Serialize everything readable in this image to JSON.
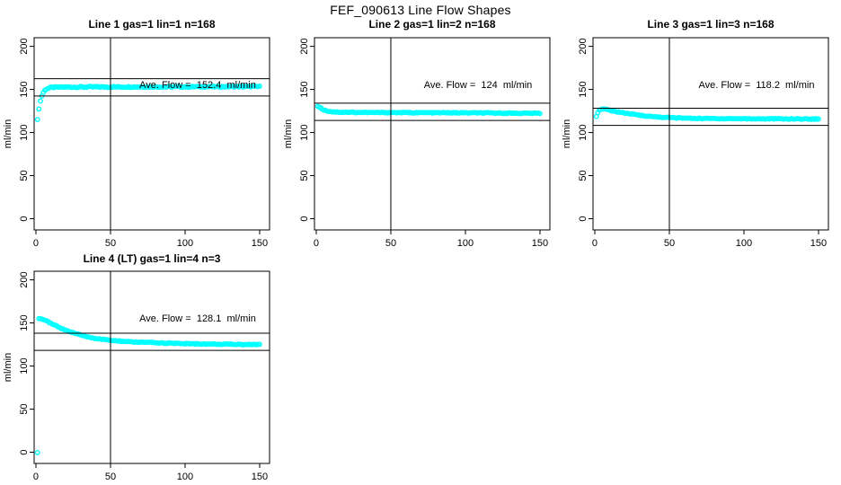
{
  "main_title": "FEF_090613  Line Flow Shapes",
  "colors": {
    "points": "#00FFFF",
    "axis": "#000000",
    "background": "#FFFFFF",
    "text": "#000000"
  },
  "chart_data": [
    {
      "type": "scatter",
      "title": "Line 1 gas=1 lin=1 n=168",
      "ylabel": "ml/min",
      "annotation": "Ave. Flow =  152.4  ml/min",
      "ave_flow": 152.4,
      "n": 168,
      "x_ticks": [
        0,
        50,
        100,
        150
      ],
      "y_ticks": [
        0,
        50,
        100,
        150,
        200
      ],
      "xlim": [
        0,
        155
      ],
      "ylim": [
        0,
        210
      ],
      "vline_x": 50,
      "hlines": [
        162.4,
        142.4
      ],
      "marker": "open-circle",
      "color": "#00FFFF",
      "noise": 0.7,
      "x_step": 1,
      "points": [
        [
          1,
          114.5
        ],
        [
          2,
          128
        ],
        [
          3,
          136.5
        ],
        [
          4,
          142.5
        ],
        [
          5,
          146.5
        ],
        [
          6,
          149
        ],
        [
          7,
          150.5
        ],
        [
          8,
          151.3
        ],
        [
          9,
          151.8
        ],
        [
          10,
          152.1
        ],
        [
          12,
          152.4
        ],
        [
          15,
          152.6
        ],
        [
          20,
          152.7
        ],
        [
          30,
          152.8
        ],
        [
          40,
          152.9
        ],
        [
          50,
          152.9
        ],
        [
          70,
          153
        ],
        [
          90,
          153
        ],
        [
          110,
          153.1
        ],
        [
          130,
          153.2
        ],
        [
          150,
          153.3
        ]
      ]
    },
    {
      "type": "scatter",
      "title": "Line 2 gas=1 lin=2 n=168",
      "ylabel": "ml/min",
      "annotation": "Ave. Flow =  124  ml/min",
      "ave_flow": 124,
      "n": 168,
      "x_ticks": [
        0,
        50,
        100,
        150
      ],
      "y_ticks": [
        0,
        50,
        100,
        150,
        200
      ],
      "xlim": [
        0,
        155
      ],
      "ylim": [
        0,
        210
      ],
      "vline_x": 50,
      "hlines": [
        134,
        114
      ],
      "marker": "open-circle",
      "color": "#00FFFF",
      "noise": 0.5,
      "x_step": 1,
      "points": [
        [
          1,
          130.5
        ],
        [
          2,
          129.8
        ],
        [
          3,
          128.5
        ],
        [
          4,
          127.3
        ],
        [
          5,
          126.4
        ],
        [
          6,
          125.7
        ],
        [
          7,
          125.2
        ],
        [
          8,
          124.8
        ],
        [
          10,
          124.3
        ],
        [
          12,
          124
        ],
        [
          15,
          123.7
        ],
        [
          20,
          123.5
        ],
        [
          30,
          123.3
        ],
        [
          40,
          123.2
        ],
        [
          50,
          123.2
        ],
        [
          70,
          123
        ],
        [
          90,
          122.9
        ],
        [
          110,
          122.7
        ],
        [
          130,
          122.5
        ],
        [
          150,
          122.3
        ]
      ]
    },
    {
      "type": "scatter",
      "title": "Line 3 gas=1 lin=3 n=168",
      "ylabel": "ml/min",
      "annotation": "Ave. Flow =  118.2  ml/min",
      "ave_flow": 118.2,
      "n": 168,
      "x_ticks": [
        0,
        50,
        100,
        150
      ],
      "y_ticks": [
        0,
        50,
        100,
        150,
        200
      ],
      "xlim": [
        0,
        155
      ],
      "ylim": [
        0,
        210
      ],
      "vline_x": 50,
      "hlines": [
        128.2,
        108.2
      ],
      "marker": "open-circle",
      "color": "#00FFFF",
      "noise": 0.5,
      "x_step": 1,
      "points": [
        [
          1,
          119
        ],
        [
          2,
          123.5
        ],
        [
          3,
          125.8
        ],
        [
          4,
          126.7
        ],
        [
          5,
          127.1
        ],
        [
          6,
          127.1
        ],
        [
          7,
          126.9
        ],
        [
          8,
          126.6
        ],
        [
          10,
          125.9
        ],
        [
          12,
          125.1
        ],
        [
          15,
          124.1
        ],
        [
          20,
          122.6
        ],
        [
          25,
          121.3
        ],
        [
          30,
          120.1
        ],
        [
          35,
          119.1
        ],
        [
          40,
          118.3
        ],
        [
          45,
          117.7
        ],
        [
          50,
          117.3
        ],
        [
          60,
          116.7
        ],
        [
          70,
          116.4
        ],
        [
          80,
          116.2
        ],
        [
          90,
          116.1
        ],
        [
          100,
          116
        ],
        [
          110,
          115.9
        ],
        [
          120,
          115.9
        ],
        [
          130,
          115.8
        ],
        [
          140,
          115.8
        ],
        [
          150,
          115.7
        ]
      ]
    },
    {
      "type": "scatter",
      "title": "Line 4 (LT) gas=1 lin=4 n=3",
      "ylabel": "ml/min",
      "annotation": "Ave. Flow =  128.1  ml/min",
      "ave_flow": 128.1,
      "n": 3,
      "x_ticks": [
        0,
        50,
        100,
        150
      ],
      "y_ticks": [
        0,
        50,
        100,
        150,
        200
      ],
      "xlim": [
        0,
        155
      ],
      "ylim": [
        0,
        210
      ],
      "vline_x": 50,
      "hlines": [
        138.1,
        118.1
      ],
      "marker": "open-circle",
      "color": "#00FFFF",
      "noise": 0.5,
      "x_step": 1,
      "points": [
        [
          1,
          0
        ],
        [
          2,
          155.5
        ],
        [
          3,
          155.2
        ],
        [
          4,
          154.7
        ],
        [
          5,
          154
        ],
        [
          6,
          153.2
        ],
        [
          8,
          151.5
        ],
        [
          10,
          149.7
        ],
        [
          12,
          147.9
        ],
        [
          15,
          145.4
        ],
        [
          18,
          143.1
        ],
        [
          21,
          141
        ],
        [
          24,
          139.1
        ],
        [
          27,
          137.4
        ],
        [
          30,
          135.9
        ],
        [
          33,
          134.6
        ],
        [
          36,
          133.4
        ],
        [
          39,
          132.4
        ],
        [
          42,
          131.5
        ],
        [
          45,
          130.8
        ],
        [
          48,
          130.2
        ],
        [
          52,
          129.5
        ],
        [
          56,
          129
        ],
        [
          60,
          128.5
        ],
        [
          65,
          128
        ],
        [
          70,
          127.6
        ],
        [
          75,
          127.3
        ],
        [
          80,
          127
        ],
        [
          85,
          126.7
        ],
        [
          90,
          126.5
        ],
        [
          95,
          126.2
        ],
        [
          100,
          126
        ],
        [
          110,
          125.7
        ],
        [
          120,
          125.4
        ],
        [
          130,
          125.2
        ],
        [
          140,
          125.1
        ],
        [
          150,
          125
        ]
      ]
    }
  ]
}
